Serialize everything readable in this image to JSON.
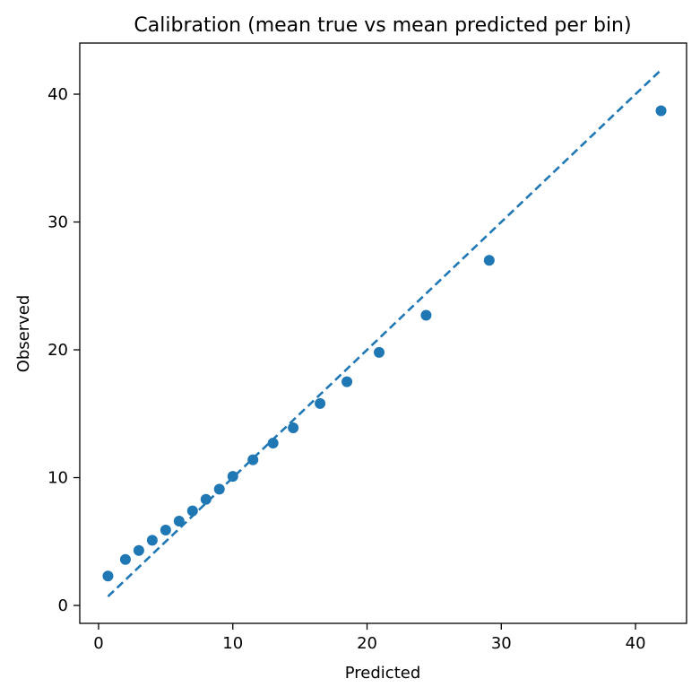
{
  "chart_data": {
    "type": "scatter",
    "title": "Calibration (mean true vs mean predicted per bin)",
    "xlabel": "Predicted",
    "ylabel": "Observed",
    "xlim": [
      -1.4,
      43.8
    ],
    "ylim": [
      -1.4,
      44.0
    ],
    "x_ticks": [
      0,
      10,
      20,
      30,
      40
    ],
    "y_ticks": [
      0,
      10,
      20,
      30,
      40
    ],
    "grid": false,
    "points": [
      {
        "x": 0.7,
        "y": 2.3
      },
      {
        "x": 2.0,
        "y": 3.6
      },
      {
        "x": 3.0,
        "y": 4.3
      },
      {
        "x": 4.0,
        "y": 5.1
      },
      {
        "x": 5.0,
        "y": 5.9
      },
      {
        "x": 6.0,
        "y": 6.6
      },
      {
        "x": 7.0,
        "y": 7.4
      },
      {
        "x": 8.0,
        "y": 8.3
      },
      {
        "x": 9.0,
        "y": 9.1
      },
      {
        "x": 10.0,
        "y": 10.1
      },
      {
        "x": 11.5,
        "y": 11.4
      },
      {
        "x": 13.0,
        "y": 12.7
      },
      {
        "x": 14.5,
        "y": 13.9
      },
      {
        "x": 16.5,
        "y": 15.8
      },
      {
        "x": 18.5,
        "y": 17.5
      },
      {
        "x": 20.9,
        "y": 19.8
      },
      {
        "x": 24.4,
        "y": 22.7
      },
      {
        "x": 29.1,
        "y": 27.0
      },
      {
        "x": 41.9,
        "y": 38.7
      }
    ],
    "reference_line": {
      "x": [
        0.7,
        41.9
      ],
      "y": [
        0.7,
        41.9
      ],
      "style": "dashed"
    },
    "colors": {
      "points": "#1f77b4",
      "reference_line": "#1f77b4"
    }
  }
}
